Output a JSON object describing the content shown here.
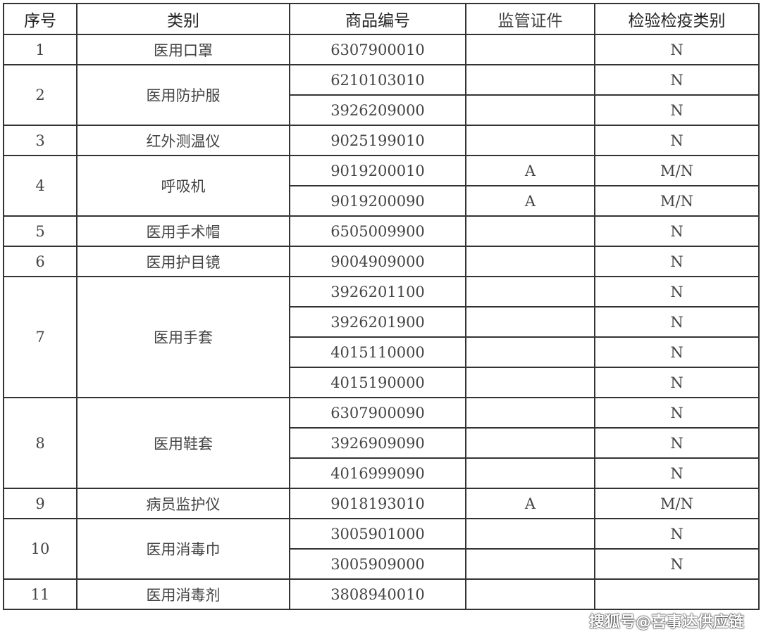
{
  "headers": [
    "序号",
    "类别",
    "商品编号",
    "监管证件",
    "检验检疫类别"
  ],
  "groups": [
    {
      "seq": "1",
      "category": "医用口罩",
      "items": [
        {
          "code": "6307900010",
          "cert": "",
          "ciq": "N"
        }
      ]
    },
    {
      "seq": "2",
      "category": "医用防护服",
      "items": [
        {
          "code": "6210103010",
          "cert": "",
          "ciq": "N"
        },
        {
          "code": "3926209000",
          "cert": "",
          "ciq": "N"
        }
      ]
    },
    {
      "seq": "3",
      "category": "红外测温仪",
      "items": [
        {
          "code": "9025199010",
          "cert": "",
          "ciq": "N"
        }
      ]
    },
    {
      "seq": "4",
      "category": "呼吸机",
      "items": [
        {
          "code": "9019200010",
          "cert": "A",
          "ciq": "M/N"
        },
        {
          "code": "9019200090",
          "cert": "A",
          "ciq": "M/N"
        }
      ]
    },
    {
      "seq": "5",
      "category": "医用手术帽",
      "items": [
        {
          "code": "6505009900",
          "cert": "",
          "ciq": "N"
        }
      ]
    },
    {
      "seq": "6",
      "category": "医用护目镜",
      "items": [
        {
          "code": "9004909000",
          "cert": "",
          "ciq": "N"
        }
      ]
    },
    {
      "seq": "7",
      "category": "医用手套",
      "items": [
        {
          "code": "3926201100",
          "cert": "",
          "ciq": "N"
        },
        {
          "code": "3926201900",
          "cert": "",
          "ciq": "N"
        },
        {
          "code": "4015110000",
          "cert": "",
          "ciq": "N"
        },
        {
          "code": "4015190000",
          "cert": "",
          "ciq": "N"
        }
      ]
    },
    {
      "seq": "8",
      "category": "医用鞋套",
      "items": [
        {
          "code": "6307900090",
          "cert": "",
          "ciq": "N"
        },
        {
          "code": "3926909090",
          "cert": "",
          "ciq": "N"
        },
        {
          "code": "4016999090",
          "cert": "",
          "ciq": "N"
        }
      ]
    },
    {
      "seq": "9",
      "category": "病员监护仪",
      "items": [
        {
          "code": "9018193010",
          "cert": "A",
          "ciq": "M/N"
        }
      ]
    },
    {
      "seq": "10",
      "category": "医用消毒巾",
      "items": [
        {
          "code": "3005901000",
          "cert": "",
          "ciq": "N"
        },
        {
          "code": "3005909000",
          "cert": "",
          "ciq": "N"
        }
      ]
    },
    {
      "seq": "11",
      "category": "医用消毒剂",
      "items": [
        {
          "code": "3808940010",
          "cert": "",
          "ciq": ""
        }
      ]
    }
  ],
  "watermark": "搜狐号@喜事达供应链"
}
